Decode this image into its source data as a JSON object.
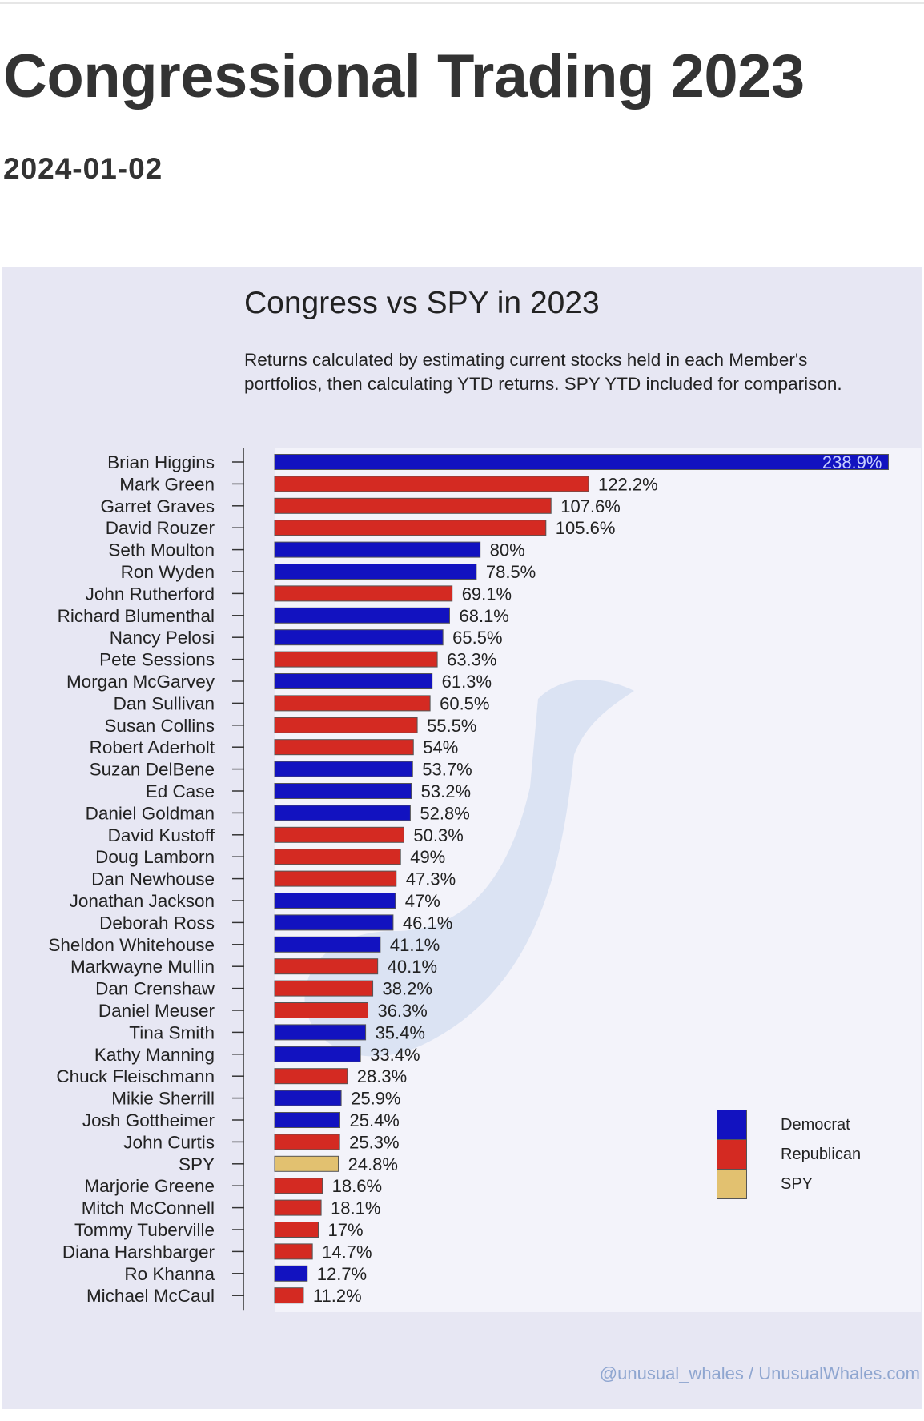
{
  "header": {
    "title": "Congressional Trading 2023",
    "date": "2024-01-02"
  },
  "colors": {
    "Democrat": "#1212c0",
    "Republican": "#d42a22",
    "SPY": "#e2c170"
  },
  "credit": "@unusual_whales / UnusualWhales.com",
  "chart_data": {
    "type": "bar",
    "orientation": "horizontal",
    "title": "Congress vs SPY in 2023",
    "subtitle": "Returns calculated by estimating current stocks held in each Member's portfolios, then calculating YTD returns. SPY YTD included for comparison.",
    "xlim": [
      0,
      240
    ],
    "grid": false,
    "legend_position": "bottom-right",
    "legend": [
      {
        "label": "Democrat",
        "color": "#1212c0"
      },
      {
        "label": "Republican",
        "color": "#d42a22"
      },
      {
        "label": "SPY",
        "color": "#e2c170"
      }
    ],
    "bars": [
      {
        "name": "Brian Higgins",
        "value": 238.9,
        "label": "238.9%",
        "group": "Democrat"
      },
      {
        "name": "Mark Green",
        "value": 122.2,
        "label": "122.2%",
        "group": "Republican"
      },
      {
        "name": "Garret Graves",
        "value": 107.6,
        "label": "107.6%",
        "group": "Republican"
      },
      {
        "name": "David Rouzer",
        "value": 105.6,
        "label": "105.6%",
        "group": "Republican"
      },
      {
        "name": "Seth Moulton",
        "value": 80,
        "label": "80%",
        "group": "Democrat"
      },
      {
        "name": "Ron Wyden",
        "value": 78.5,
        "label": "78.5%",
        "group": "Democrat"
      },
      {
        "name": "John Rutherford",
        "value": 69.1,
        "label": "69.1%",
        "group": "Republican"
      },
      {
        "name": "Richard Blumenthal",
        "value": 68.1,
        "label": "68.1%",
        "group": "Democrat"
      },
      {
        "name": "Nancy Pelosi",
        "value": 65.5,
        "label": "65.5%",
        "group": "Democrat"
      },
      {
        "name": "Pete Sessions",
        "value": 63.3,
        "label": "63.3%",
        "group": "Republican"
      },
      {
        "name": "Morgan McGarvey",
        "value": 61.3,
        "label": "61.3%",
        "group": "Democrat"
      },
      {
        "name": "Dan Sullivan",
        "value": 60.5,
        "label": "60.5%",
        "group": "Republican"
      },
      {
        "name": "Susan Collins",
        "value": 55.5,
        "label": "55.5%",
        "group": "Republican"
      },
      {
        "name": "Robert Aderholt",
        "value": 54,
        "label": "54%",
        "group": "Republican"
      },
      {
        "name": "Suzan DelBene",
        "value": 53.7,
        "label": "53.7%",
        "group": "Democrat"
      },
      {
        "name": "Ed Case",
        "value": 53.2,
        "label": "53.2%",
        "group": "Democrat"
      },
      {
        "name": "Daniel Goldman",
        "value": 52.8,
        "label": "52.8%",
        "group": "Democrat"
      },
      {
        "name": "David Kustoff",
        "value": 50.3,
        "label": "50.3%",
        "group": "Republican"
      },
      {
        "name": "Doug Lamborn",
        "value": 49,
        "label": "49%",
        "group": "Republican"
      },
      {
        "name": "Dan Newhouse",
        "value": 47.3,
        "label": "47.3%",
        "group": "Republican"
      },
      {
        "name": "Jonathan Jackson",
        "value": 47,
        "label": "47%",
        "group": "Democrat"
      },
      {
        "name": "Deborah Ross",
        "value": 46.1,
        "label": "46.1%",
        "group": "Democrat"
      },
      {
        "name": "Sheldon Whitehouse",
        "value": 41.1,
        "label": "41.1%",
        "group": "Democrat"
      },
      {
        "name": "Markwayne Mullin",
        "value": 40.1,
        "label": "40.1%",
        "group": "Republican"
      },
      {
        "name": "Dan Crenshaw",
        "value": 38.2,
        "label": "38.2%",
        "group": "Republican"
      },
      {
        "name": "Daniel Meuser",
        "value": 36.3,
        "label": "36.3%",
        "group": "Republican"
      },
      {
        "name": "Tina Smith",
        "value": 35.4,
        "label": "35.4%",
        "group": "Democrat"
      },
      {
        "name": "Kathy Manning",
        "value": 33.4,
        "label": "33.4%",
        "group": "Democrat"
      },
      {
        "name": "Chuck Fleischmann",
        "value": 28.3,
        "label": "28.3%",
        "group": "Republican"
      },
      {
        "name": "Mikie Sherrill",
        "value": 25.9,
        "label": "25.9%",
        "group": "Democrat"
      },
      {
        "name": "Josh Gottheimer",
        "value": 25.4,
        "label": "25.4%",
        "group": "Democrat"
      },
      {
        "name": "John Curtis",
        "value": 25.3,
        "label": "25.3%",
        "group": "Republican"
      },
      {
        "name": "SPY",
        "value": 24.8,
        "label": "24.8%",
        "group": "SPY"
      },
      {
        "name": "Marjorie Greene",
        "value": 18.6,
        "label": "18.6%",
        "group": "Republican"
      },
      {
        "name": "Mitch McConnell",
        "value": 18.1,
        "label": "18.1%",
        "group": "Republican"
      },
      {
        "name": "Tommy Tuberville",
        "value": 17,
        "label": "17%",
        "group": "Republican"
      },
      {
        "name": "Diana Harshbarger",
        "value": 14.7,
        "label": "14.7%",
        "group": "Republican"
      },
      {
        "name": "Ro Khanna",
        "value": 12.7,
        "label": "12.7%",
        "group": "Democrat"
      },
      {
        "name": "Michael McCaul",
        "value": 11.2,
        "label": "11.2%",
        "group": "Republican"
      }
    ]
  }
}
